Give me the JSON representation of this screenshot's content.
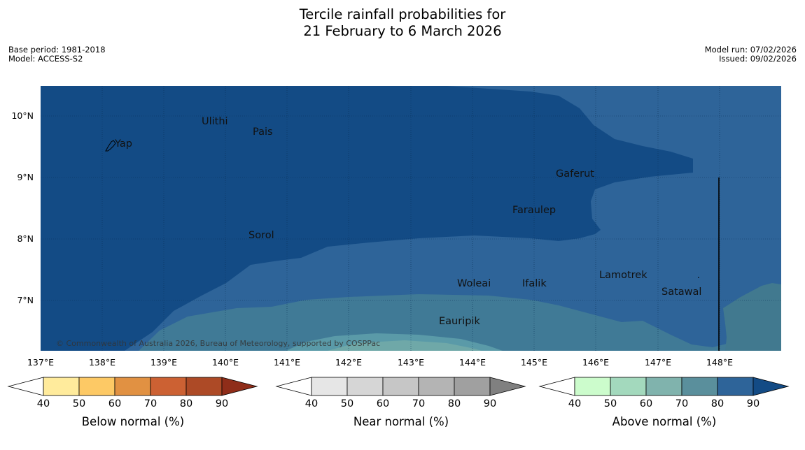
{
  "title_line1": "Tercile rainfall probabilities for",
  "title_line2": "21 February to 6 March 2026",
  "meta": {
    "base_period": "Base period: 1981-2018",
    "model": "Model: ACCESS-S2",
    "model_run": "Model run: 07/02/2026",
    "issued": "Issued: 09/02/2026"
  },
  "map": {
    "lat_labels": [
      "10°N",
      "9°N",
      "8°N",
      "7°N"
    ],
    "lon_labels": [
      "137°E",
      "138°E",
      "139°E",
      "140°E",
      "141°E",
      "142°E",
      "143°E",
      "144°E",
      "145°E",
      "146°E",
      "147°E",
      "148°E"
    ],
    "places": {
      "yap": "Yap",
      "ulithi": "Ulithi",
      "pais": "Pais",
      "gaferut": "Gaferut",
      "faraulep": "Faraulep",
      "sorol": "Sorol",
      "lamotrek": "Lamotrek",
      "woleai": "Woleai",
      "ifalik": "Ifalik",
      "satawal": "Satawal",
      "eauripik": "Eauripik"
    },
    "copyright": "© Commonwealth of Australia 2026, Bureau of Meteorology, supported by COSPPac",
    "colors": {
      "above_90": "#134b85",
      "above_80": "#2e6499",
      "above_70": "#407a96",
      "above_60": "#5a9aa8",
      "above_50": "#6fa8a8"
    }
  },
  "colorbars": [
    {
      "label": "Below normal (%)",
      "ticks": [
        "40",
        "50",
        "60",
        "70",
        "80",
        "90"
      ],
      "colors": [
        "#ffffff",
        "#ffeb9c",
        "#fdc965",
        "#e19142",
        "#cc6133",
        "#ad4a26",
        "#8f2d19"
      ]
    },
    {
      "label": "Near normal (%)",
      "ticks": [
        "40",
        "50",
        "60",
        "70",
        "80",
        "90"
      ],
      "colors": [
        "#ffffff",
        "#e6e6e6",
        "#d6d6d6",
        "#c6c6c6",
        "#b4b4b4",
        "#a0a0a0",
        "#808080"
      ]
    },
    {
      "label": "Above normal (%)",
      "ticks": [
        "40",
        "50",
        "60",
        "70",
        "80",
        "90"
      ],
      "colors": [
        "#ffffff",
        "#ccfccc",
        "#a3d9bd",
        "#80b3ad",
        "#5a8f9c",
        "#2e6499",
        "#134b85"
      ]
    }
  ]
}
